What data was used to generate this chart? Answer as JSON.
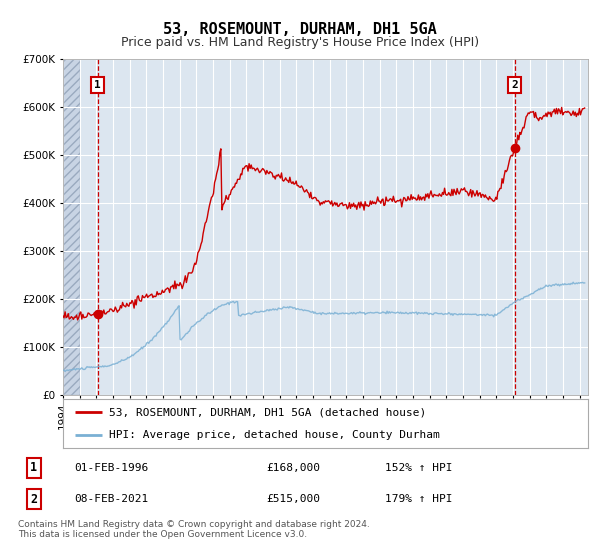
{
  "title": "53, ROSEMOUNT, DURHAM, DH1 5GA",
  "subtitle": "Price paid vs. HM Land Registry's House Price Index (HPI)",
  "ylim": [
    0,
    700000
  ],
  "xlim_start": 1994.0,
  "xlim_end": 2025.5,
  "background_color": "#ffffff",
  "plot_bg_color": "#dce6f0",
  "grid_color": "#ffffff",
  "red_line_color": "#cc0000",
  "blue_line_color": "#7ab0d4",
  "marker1_date": 1996.08,
  "marker1_value": 168000,
  "marker2_date": 2021.1,
  "marker2_value": 515000,
  "vline_color": "#cc0000",
  "legend_label1": "53, ROSEMOUNT, DURHAM, DH1 5GA (detached house)",
  "legend_label2": "HPI: Average price, detached house, County Durham",
  "table_row1": [
    "1",
    "01-FEB-1996",
    "£168,000",
    "152% ↑ HPI"
  ],
  "table_row2": [
    "2",
    "08-FEB-2021",
    "£515,000",
    "179% ↑ HPI"
  ],
  "footer": "Contains HM Land Registry data © Crown copyright and database right 2024.\nThis data is licensed under the Open Government Licence v3.0.",
  "title_fontsize": 11,
  "subtitle_fontsize": 9,
  "tick_fontsize": 7.5,
  "legend_fontsize": 8,
  "table_fontsize": 8,
  "footer_fontsize": 6.5
}
